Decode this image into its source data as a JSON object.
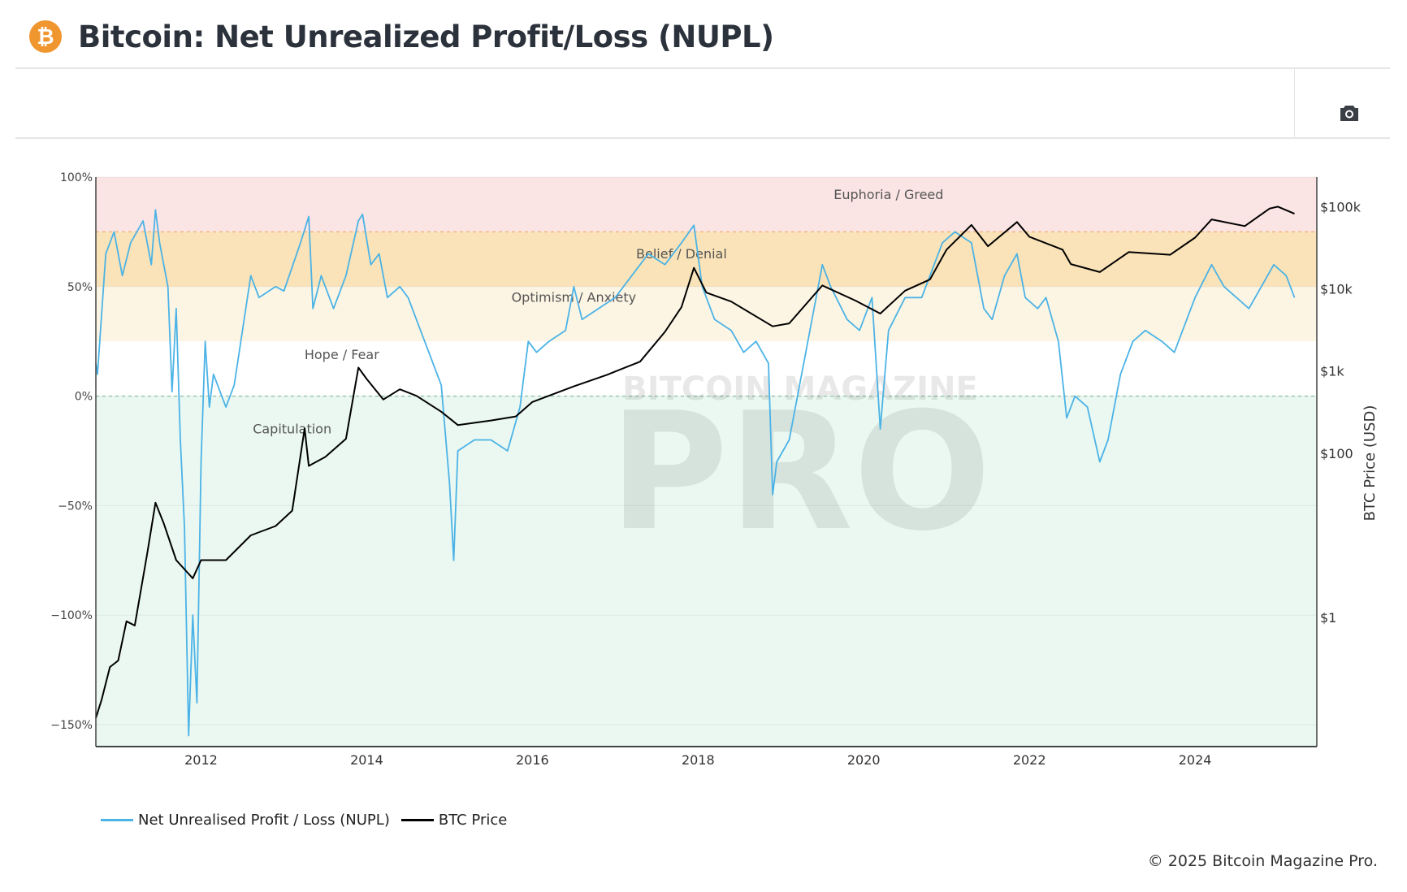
{
  "header": {
    "title": "Bitcoin: Net Unrealized Profit/Loss (NUPL)",
    "logo_glyph": "₿"
  },
  "toolbar": {
    "camera_icon": "camera-icon"
  },
  "footer": {
    "copyright": "© 2025 Bitcoin Magazine Pro."
  },
  "watermark": {
    "line1": "BITCOIN MAGAZINE",
    "line2": "PRO"
  },
  "colors": {
    "nupl": "#4bb3e6",
    "price": "#000000",
    "euphoria": "#fbe4e4",
    "belief": "#fae3b8",
    "optimism": "#fdf5e4",
    "hope": "#ffffff",
    "capitulation": "#eaf8f1",
    "brand": "#f0962e"
  },
  "chart_data": {
    "type": "line",
    "title": "Bitcoin: Net Unrealized Profit/Loss (NUPL)",
    "xlabel": "",
    "ylabel_left": "",
    "ylabel_right": "BTC Price (USD)",
    "xlim": [
      2010.73,
      2025.47
    ],
    "ylim_left": [
      -160,
      100
    ],
    "ylim_right_log10": [
      -1.57,
      5.36
    ],
    "x_ticks": [
      {
        "v": 2012,
        "label": "2012"
      },
      {
        "v": 2014,
        "label": "2014"
      },
      {
        "v": 2016,
        "label": "2016"
      },
      {
        "v": 2018,
        "label": "2018"
      },
      {
        "v": 2020,
        "label": "2020"
      },
      {
        "v": 2022,
        "label": "2022"
      },
      {
        "v": 2024,
        "label": "2024"
      }
    ],
    "y_ticks_left": [
      {
        "v": 100,
        "label": "100%"
      },
      {
        "v": 50,
        "label": "50%"
      },
      {
        "v": 0,
        "label": "0%"
      },
      {
        "v": -50,
        "label": "−50%"
      },
      {
        "v": -100,
        "label": "−100%"
      },
      {
        "v": -150,
        "label": "−150%"
      }
    ],
    "y_ticks_right": [
      {
        "v": 100000,
        "label": "$100k"
      },
      {
        "v": 10000,
        "label": "$10k"
      },
      {
        "v": 1000,
        "label": "$1k"
      },
      {
        "v": 100,
        "label": "$100"
      },
      {
        "v": 1,
        "label": "$1"
      }
    ],
    "zones": [
      {
        "name": "Euphoria / Greed",
        "from": 75,
        "to": 100,
        "color": "#fbe4e4",
        "label_x": 2020.3,
        "label_y": 90
      },
      {
        "name": "Belief / Denial",
        "from": 50,
        "to": 75,
        "color": "#fae3b8",
        "label_x": 2017.8,
        "label_y": 63
      },
      {
        "name": "Optimism / Anxiety",
        "from": 25,
        "to": 50,
        "color": "#fdf5e4",
        "label_x": 2016.5,
        "label_y": 43
      },
      {
        "name": "Hope / Fear",
        "from": 0,
        "to": 25,
        "color": "#ffffff",
        "label_x": 2013.7,
        "label_y": 17
      },
      {
        "name": "Capitulation",
        "from": -160,
        "to": 0,
        "color": "#eaf8f1",
        "label_x": 2013.1,
        "label_y": -17
      }
    ],
    "grid": true,
    "legend_position": "bottom-left",
    "series": [
      {
        "name": "Net Unrealised Profit / Loss (NUPL)",
        "axis": "left",
        "color": "#4bb3e6",
        "x": [
          2010.73,
          2010.75,
          2010.85,
          2010.95,
          2011.05,
          2011.15,
          2011.3,
          2011.4,
          2011.45,
          2011.5,
          2011.6,
          2011.65,
          2011.7,
          2011.75,
          2011.8,
          2011.85,
          2011.9,
          2011.95,
          2012.0,
          2012.05,
          2012.1,
          2012.15,
          2012.3,
          2012.4,
          2012.5,
          2012.6,
          2012.7,
          2012.9,
          2013.0,
          2013.2,
          2013.3,
          2013.35,
          2013.45,
          2013.6,
          2013.75,
          2013.9,
          2013.95,
          2014.05,
          2014.15,
          2014.25,
          2014.4,
          2014.5,
          2014.6,
          2014.75,
          2014.9,
          2015.0,
          2015.05,
          2015.1,
          2015.3,
          2015.5,
          2015.7,
          2015.85,
          2015.95,
          2016.05,
          2016.2,
          2016.4,
          2016.5,
          2016.6,
          2016.8,
          2017.0,
          2017.2,
          2017.4,
          2017.6,
          2017.8,
          2017.95,
          2018.05,
          2018.2,
          2018.4,
          2018.55,
          2018.7,
          2018.85,
          2018.9,
          2018.95,
          2019.1,
          2019.25,
          2019.4,
          2019.5,
          2019.6,
          2019.8,
          2019.95,
          2020.1,
          2020.2,
          2020.3,
          2020.5,
          2020.7,
          2020.85,
          2020.95,
          2021.1,
          2021.3,
          2021.45,
          2021.55,
          2021.7,
          2021.85,
          2021.95,
          2022.1,
          2022.2,
          2022.35,
          2022.45,
          2022.55,
          2022.7,
          2022.85,
          2022.95,
          2023.1,
          2023.25,
          2023.4,
          2023.6,
          2023.75,
          2023.9,
          2024.0,
          2024.2,
          2024.35,
          2024.5,
          2024.65,
          2024.8,
          2024.95,
          2025.1,
          2025.2
        ],
        "values": [
          15,
          10,
          65,
          75,
          55,
          70,
          80,
          60,
          85,
          70,
          50,
          2,
          40,
          -20,
          -60,
          -155,
          -100,
          -140,
          -30,
          25,
          -5,
          10,
          -5,
          5,
          30,
          55,
          45,
          50,
          48,
          70,
          82,
          40,
          55,
          40,
          55,
          80,
          83,
          60,
          65,
          45,
          50,
          45,
          35,
          20,
          5,
          -40,
          -75,
          -25,
          -20,
          -20,
          -25,
          -5,
          25,
          20,
          25,
          30,
          50,
          35,
          40,
          45,
          55,
          65,
          60,
          70,
          78,
          50,
          35,
          30,
          20,
          25,
          15,
          -45,
          -30,
          -20,
          10,
          40,
          60,
          50,
          35,
          30,
          45,
          -15,
          30,
          45,
          45,
          60,
          70,
          75,
          70,
          40,
          35,
          55,
          65,
          45,
          40,
          45,
          25,
          -10,
          0,
          -5,
          -30,
          -20,
          10,
          25,
          30,
          25,
          20,
          35,
          45,
          60,
          50,
          45,
          40,
          50,
          60,
          55,
          45
        ]
      },
      {
        "name": "BTC Price",
        "axis": "right",
        "color": "#000000",
        "x": [
          2010.73,
          2010.8,
          2010.9,
          2011.0,
          2011.1,
          2011.2,
          2011.35,
          2011.45,
          2011.55,
          2011.7,
          2011.9,
          2012.0,
          2012.3,
          2012.6,
          2012.9,
          2013.1,
          2013.25,
          2013.3,
          2013.5,
          2013.75,
          2013.9,
          2014.0,
          2014.2,
          2014.4,
          2014.6,
          2014.9,
          2015.1,
          2015.5,
          2015.8,
          2016.0,
          2016.5,
          2016.9,
          2017.3,
          2017.6,
          2017.8,
          2017.95,
          2018.1,
          2018.4,
          2018.9,
          2019.1,
          2019.5,
          2019.9,
          2020.2,
          2020.5,
          2020.8,
          2021.0,
          2021.3,
          2021.5,
          2021.85,
          2022.0,
          2022.4,
          2022.5,
          2022.85,
          2023.2,
          2023.7,
          2024.0,
          2024.2,
          2024.6,
          2024.9,
          2025.0,
          2025.2
        ],
        "values": [
          0.06,
          0.1,
          0.25,
          0.3,
          0.9,
          0.8,
          6,
          25,
          14,
          5,
          3,
          5,
          5,
          10,
          13,
          20,
          200,
          70,
          90,
          150,
          1100,
          800,
          450,
          600,
          500,
          320,
          220,
          250,
          280,
          420,
          650,
          900,
          1300,
          3000,
          6000,
          18000,
          9000,
          7000,
          3500,
          3800,
          11000,
          7200,
          5000,
          9500,
          13000,
          30000,
          60000,
          33000,
          65000,
          43000,
          30000,
          20000,
          16000,
          28000,
          26000,
          42000,
          70000,
          58000,
          95000,
          100000,
          82000
        ]
      }
    ]
  }
}
